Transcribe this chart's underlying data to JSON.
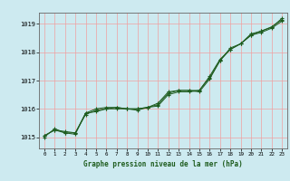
{
  "title": "Graphe pression niveau de la mer (hPa)",
  "bg_color": "#cdeaf0",
  "grid_color": "#f0a0a0",
  "line_color": "#1e5c1e",
  "x_ticks": [
    0,
    1,
    2,
    3,
    4,
    5,
    6,
    7,
    8,
    9,
    10,
    11,
    12,
    13,
    14,
    15,
    16,
    17,
    18,
    19,
    20,
    21,
    22,
    23
  ],
  "ylim": [
    1014.6,
    1019.4
  ],
  "y_ticks": [
    1015,
    1016,
    1017,
    1018,
    1019
  ],
  "figsize": [
    3.2,
    2.0
  ],
  "dpi": 100,
  "series": [
    [
      1015.05,
      1015.25,
      1015.2,
      1015.15,
      1015.85,
      1015.9,
      1016.0,
      1016.05,
      1016.0,
      1016.0,
      1016.05,
      1016.1,
      1016.5,
      1016.6,
      1016.6,
      1016.65,
      1017.1,
      1017.7,
      1018.1,
      1018.3,
      1018.6,
      1018.7,
      1018.85,
      1019.1
    ],
    [
      1015.0,
      1015.3,
      1015.15,
      1015.15,
      1015.8,
      1015.95,
      1016.0,
      1016.0,
      1016.0,
      1015.95,
      1016.05,
      1016.15,
      1016.55,
      1016.65,
      1016.65,
      1016.6,
      1017.05,
      1017.7,
      1018.15,
      1018.3,
      1018.65,
      1018.75,
      1018.9,
      1019.15
    ],
    [
      1015.05,
      1015.25,
      1015.15,
      1015.1,
      1015.85,
      1016.0,
      1016.05,
      1016.05,
      1016.0,
      1016.0,
      1016.05,
      1016.2,
      1016.6,
      1016.65,
      1016.65,
      1016.65,
      1017.15,
      1017.75,
      1018.1,
      1018.3,
      1018.6,
      1018.75,
      1018.88,
      1019.2
    ]
  ]
}
